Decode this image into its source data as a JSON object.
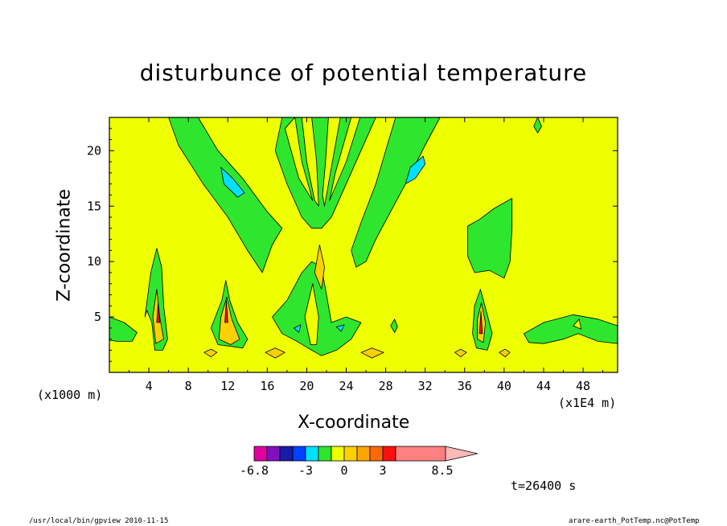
{
  "chart_data": {
    "type": "heatmap",
    "title": "disturbunce of potential temperature",
    "xlabel": "X-coordinate",
    "ylabel": "Z-coordinate",
    "x_unit_left": "(x1000 m)",
    "x_unit_right": "(x1E4 m)",
    "xlim": [
      0,
      51.5
    ],
    "ylim": [
      0,
      23
    ],
    "xticks": [
      4,
      8,
      12,
      16,
      20,
      24,
      28,
      32,
      36,
      40,
      44,
      48
    ],
    "yticks": [
      5,
      10,
      15,
      20
    ],
    "background_level_color": "#eeff00",
    "colorbar": {
      "labels": [
        {
          "value": "-6.8",
          "at": 0
        },
        {
          "value": "-3",
          "at": 4
        },
        {
          "value": "0",
          "at": 7
        },
        {
          "value": "3",
          "at": 10
        },
        {
          "value": "8.5",
          "at": 14
        }
      ],
      "colors": [
        "#e000a0",
        "#7f10c0",
        "#1a1aa8",
        "#0040ff",
        "#00e0ff",
        "#2ee62e",
        "#eeff00",
        "#ffd000",
        "#ffa500",
        "#ff6a00",
        "#ff1010",
        "#ff8080"
      ],
      "extend_color": "#ffb8b8"
    },
    "time_label": "t=26400 s",
    "footer_left": "/usr/local/bin/gpview  2010-11-15",
    "footer_right": "arare-earth_PotTemp.nc@PotTemp"
  }
}
